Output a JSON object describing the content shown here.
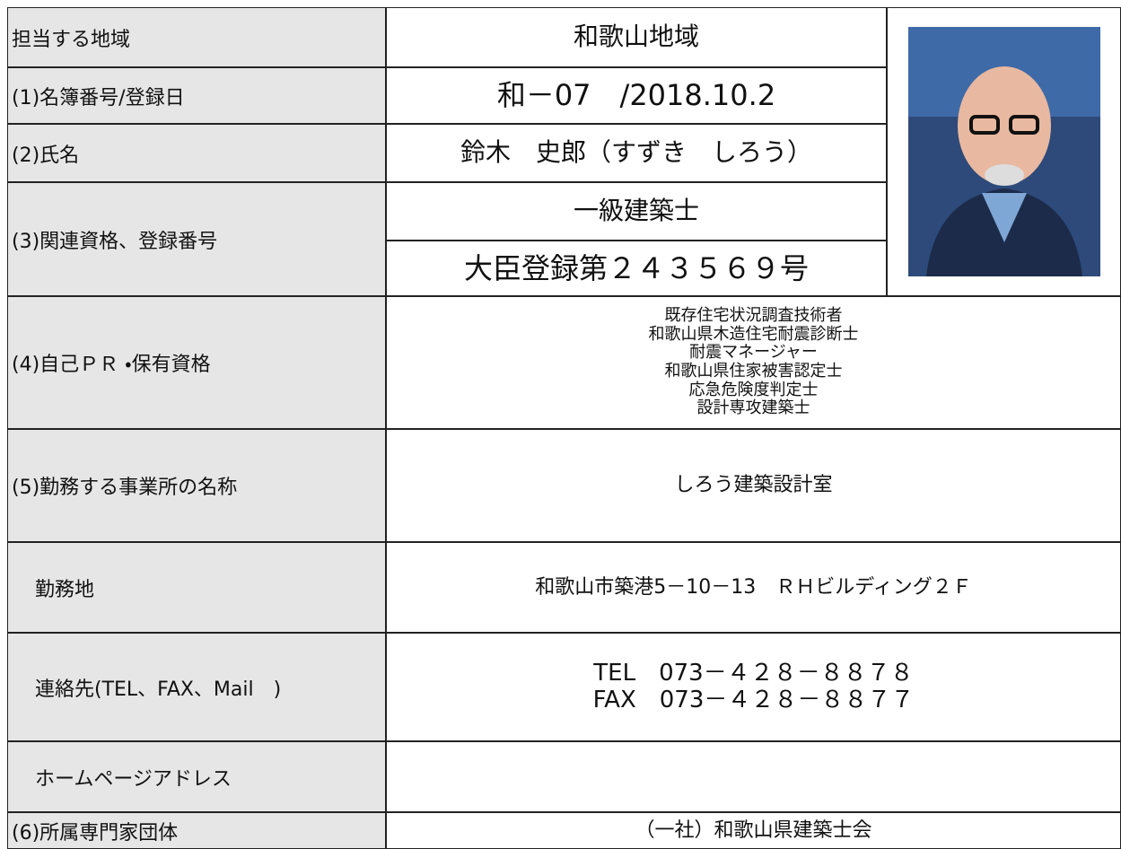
{
  "table": {
    "rows": [
      {
        "label": "担当する地域",
        "values": [
          "和歌山地域"
        ]
      },
      {
        "label": "(1)名簿番号/登録日",
        "values": [
          "和－07　/2018.10.2"
        ]
      },
      {
        "label": "(2)氏名",
        "values": [
          "鈴木　史郎（すずき　しろう）"
        ]
      },
      {
        "label": "(3)関連資格、登録番号",
        "values": [
          "一級建築士",
          "大臣登録第２４３５６９号"
        ]
      },
      {
        "label": "(4)自己ＰＲ ・保有資格",
        "values": [
          "既存住宅状況調査技術者",
          "和歌山県木造住宅耐震診断士",
          "耐震マネージャー",
          "和歌山県住家被害認定士",
          "応急危険度判定士",
          "設計専攻建築士"
        ]
      },
      {
        "label": "(5)勤務する事業所の名称",
        "values": [
          "しろう建築設計室"
        ]
      },
      {
        "label": "勤務地",
        "values": [
          "和歌山市築港5－10－13　ＲＨビルディング２Ｆ"
        ]
      },
      {
        "label": "連絡先(TEL、FAX、Mail　)",
        "values": [
          "TEL　073－４２８－８８７８",
          "FAX　073－４２８－８８７７"
        ]
      },
      {
        "label": "ホームページアドレス",
        "values": []
      },
      {
        "label": "(6)所属専門家団体",
        "values": [
          "（一社）和歌山県建築士会"
        ]
      }
    ]
  }
}
